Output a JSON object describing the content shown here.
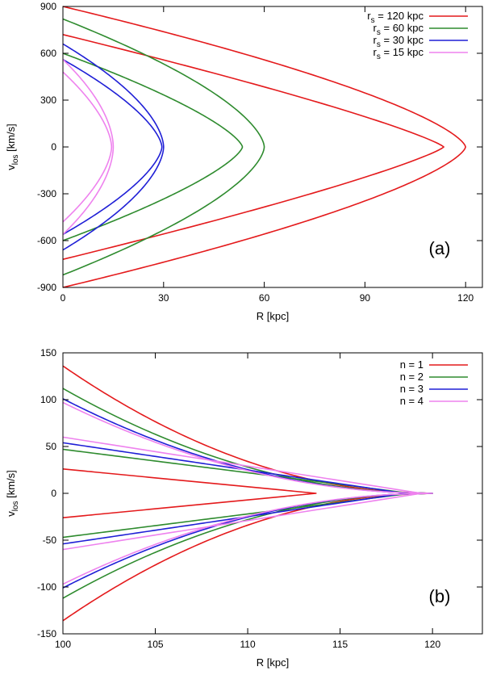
{
  "chart_data": [
    {
      "type": "line",
      "panel_label": "(a)",
      "xlabel": "R [kpc]",
      "ylabel_main": "v",
      "ylabel_sub": "los",
      "ylabel_unit": " [km/s]",
      "xlim": [
        0,
        125
      ],
      "ylim": [
        -900,
        900
      ],
      "xticks": [
        0,
        30,
        60,
        90,
        120
      ],
      "yticks": [
        -900,
        -600,
        -300,
        0,
        300,
        600,
        900
      ],
      "legend_position": "top-right",
      "series": [
        {
          "name": "r",
          "sub": "s",
          "suffix": " = 120 kpc",
          "color": "#e41a1c",
          "outer": {
            "tip": 120,
            "v0": 900,
            "p": 1.45
          },
          "inner": {
            "tip": 113.5,
            "v0": 720,
            "p": 1.2
          }
        },
        {
          "name": "r",
          "sub": "s",
          "suffix": " = 60 kpc",
          "color": "#2e8b2e",
          "outer": {
            "tip": 60,
            "v0": 820,
            "p": 1.6
          },
          "inner": {
            "tip": 53.5,
            "v0": 600,
            "p": 1.4
          }
        },
        {
          "name": "r",
          "sub": "s",
          "suffix": " = 30 kpc",
          "color": "#1f1fd6",
          "outer": {
            "tip": 30,
            "v0": 660,
            "p": 1.7
          },
          "inner": {
            "tip": 29.5,
            "v0": 560,
            "p": 1.55
          }
        },
        {
          "name": "r",
          "sub": "s",
          "suffix": " = 15 kpc",
          "color": "#ee82ee",
          "outer": {
            "tip": 15,
            "v0": 560,
            "p": 1.8
          },
          "inner": {
            "tip": 14.5,
            "v0": 480,
            "p": 1.65
          }
        }
      ]
    },
    {
      "type": "line",
      "panel_label": "(b)",
      "xlabel": "R [kpc]",
      "ylabel_main": "v",
      "ylabel_sub": "los",
      "ylabel_unit": " [km/s]",
      "xlim": [
        100,
        122.7
      ],
      "ylim": [
        -150,
        150
      ],
      "xticks": [
        100,
        105,
        110,
        115,
        120
      ],
      "yticks": [
        -150,
        -100,
        -50,
        0,
        50,
        100,
        150
      ],
      "legend_position": "top-right",
      "series": [
        {
          "name": "n = 1",
          "sub": "",
          "suffix": "",
          "color": "#e41a1c",
          "outer": {
            "tip": 120,
            "v0": 136,
            "p": 0.5
          },
          "inner": {
            "tip": 113.7,
            "v0": 26,
            "p": 1.0
          }
        },
        {
          "name": "n = 2",
          "sub": "",
          "suffix": "",
          "color": "#2e8b2e",
          "outer": {
            "tip": 120,
            "v0": 112,
            "p": 0.5
          },
          "inner": {
            "tip": 118.8,
            "v0": 47,
            "p": 1.0
          }
        },
        {
          "name": "n = 3",
          "sub": "",
          "suffix": "",
          "color": "#1f1fd6",
          "outer": {
            "tip": 120,
            "v0": 101,
            "p": 0.5
          },
          "inner": {
            "tip": 118.5,
            "v0": 54,
            "p": 1.0
          }
        },
        {
          "name": "n = 4",
          "sub": "",
          "suffix": "",
          "color": "#ee82ee",
          "outer": {
            "tip": 120,
            "v0": 97,
            "p": 0.5
          },
          "inner": {
            "tip": 119.4,
            "v0": 60,
            "p": 1.0
          }
        }
      ]
    }
  ]
}
